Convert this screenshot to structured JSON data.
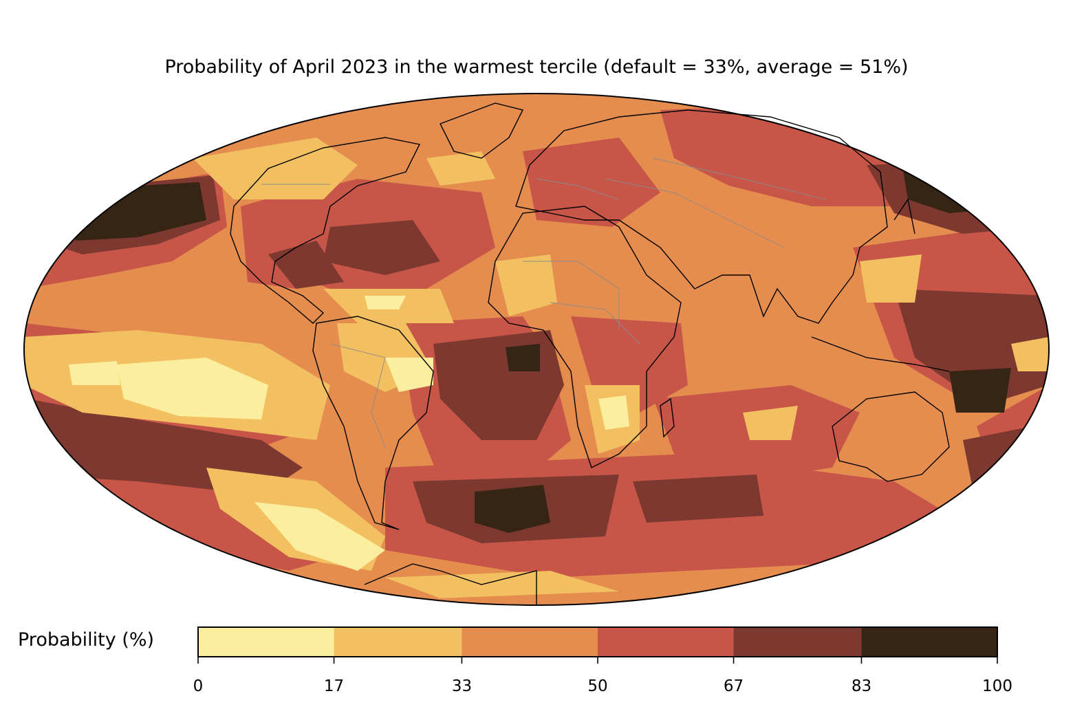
{
  "title": "Probability of April 2023 in the warmest tercile (default = 33%, average = 51%)",
  "colorbar": {
    "label": "Probability (%)",
    "ticks": [
      "0",
      "17",
      "33",
      "50",
      "67",
      "83",
      "100"
    ],
    "bins": [
      {
        "range": [
          0,
          17
        ],
        "color": "#fcee9f"
      },
      {
        "range": [
          17,
          33
        ],
        "color": "#f2c061"
      },
      {
        "range": [
          33,
          50
        ],
        "color": "#e48d4e"
      },
      {
        "range": [
          50,
          67
        ],
        "color": "#c75649"
      },
      {
        "range": [
          67,
          83
        ],
        "color": "#7d3830"
      },
      {
        "range": [
          83,
          100
        ],
        "color": "#362515"
      }
    ]
  },
  "map": {
    "projection": "mollweide",
    "base_color": "#e48d4e",
    "coastline_color": "#000000",
    "border_color": "#8a8a8a"
  }
}
